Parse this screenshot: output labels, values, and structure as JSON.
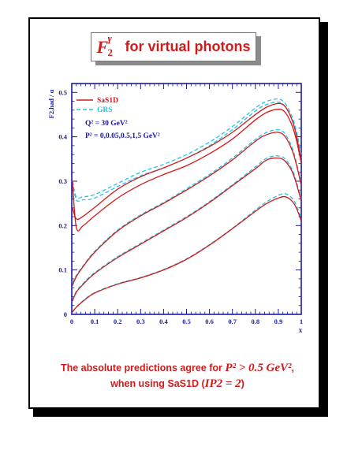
{
  "title": {
    "math": "F2γ",
    "text": "for virtual photons"
  },
  "caption": {
    "line1_prefix": "The absolute predictions agree for",
    "line1_math": "P² > 0.5 GeV²",
    "line1_suffix": ",",
    "line2_prefix": "when using SaS1D (",
    "line2_math": "IP2 = 2",
    "line2_suffix": ")"
  },
  "colors": {
    "frame": "#1a1aa6",
    "sas1d": "#d11a1a",
    "grs": "#22c4e8",
    "caption": "#d11a1a"
  },
  "chart_data": {
    "type": "line",
    "ylabel": "F2,had / α",
    "xlabel": "x",
    "xlim": [
      0,
      1
    ],
    "ylim": [
      0,
      0.52
    ],
    "xticks": [
      "0",
      "0.1",
      "0.2",
      "0.3",
      "0.4",
      "0.5",
      "0.6",
      "0.7",
      "0.8",
      "0.9",
      "1"
    ],
    "yticks": [
      "0",
      "0.1",
      "0.2",
      "0.3",
      "0.4",
      "0.5"
    ],
    "legend": [
      {
        "name": "SaS1D",
        "style": "solid"
      },
      {
        "name": "GRS",
        "style": "dashed"
      }
    ],
    "annotations": [
      "Q² = 30 GeV²",
      "P² = 0,0.05,0.5,1,5 GeV²"
    ],
    "x": [
      0.003,
      0.02,
      0.05,
      0.1,
      0.2,
      0.3,
      0.4,
      0.5,
      0.6,
      0.7,
      0.8,
      0.85,
      0.9,
      0.93,
      0.96,
      0.98,
      1.0
    ],
    "series": [
      {
        "name": "SaS1D",
        "P2": "0",
        "values": [
          0.3,
          0.195,
          0.2,
          0.222,
          0.262,
          0.292,
          0.315,
          0.335,
          0.362,
          0.395,
          0.438,
          0.455,
          0.462,
          0.455,
          0.425,
          0.39,
          0.34
        ]
      },
      {
        "name": "SaS1D",
        "P2": "0.05",
        "values": [
          0.24,
          0.215,
          0.221,
          0.241,
          0.282,
          0.31,
          0.33,
          0.352,
          0.378,
          0.41,
          0.45,
          0.467,
          0.475,
          0.468,
          0.438,
          0.4,
          0.345
        ]
      },
      {
        "name": "SaS1D",
        "P2": "0.5",
        "values": [
          0.065,
          0.085,
          0.108,
          0.14,
          0.188,
          0.222,
          0.25,
          0.28,
          0.312,
          0.348,
          0.39,
          0.405,
          0.41,
          0.4,
          0.37,
          0.335,
          0.29
        ]
      },
      {
        "name": "SaS1D",
        "P2": "1",
        "values": [
          0.03,
          0.05,
          0.068,
          0.092,
          0.128,
          0.158,
          0.188,
          0.218,
          0.252,
          0.29,
          0.328,
          0.348,
          0.352,
          0.345,
          0.322,
          0.292,
          0.255
        ]
      },
      {
        "name": "SaS1D",
        "P2": "5",
        "values": [
          0.005,
          0.016,
          0.03,
          0.048,
          0.068,
          0.082,
          0.1,
          0.124,
          0.156,
          0.193,
          0.232,
          0.25,
          0.262,
          0.265,
          0.255,
          0.238,
          0.21
        ]
      },
      {
        "name": "GRS",
        "P2": "0",
        "values": [
          0.3,
          0.264,
          0.265,
          0.27,
          0.295,
          0.32,
          0.338,
          0.36,
          0.388,
          0.423,
          0.465,
          0.48,
          0.485,
          0.475,
          0.445,
          0.41,
          0.36
        ]
      },
      {
        "name": "GRS",
        "P2": "0.05",
        "values": [
          0.3,
          0.258,
          0.258,
          0.262,
          0.288,
          0.312,
          0.33,
          0.352,
          0.38,
          0.416,
          0.458,
          0.473,
          0.478,
          0.468,
          0.438,
          0.403,
          0.352
        ]
      },
      {
        "name": "GRS",
        "P2": "0.5",
        "values": [
          0.07,
          0.088,
          0.11,
          0.142,
          0.19,
          0.224,
          0.252,
          0.283,
          0.315,
          0.352,
          0.394,
          0.41,
          0.416,
          0.406,
          0.376,
          0.34,
          0.295
        ]
      },
      {
        "name": "GRS",
        "P2": "1",
        "values": [
          0.032,
          0.052,
          0.07,
          0.094,
          0.13,
          0.16,
          0.19,
          0.22,
          0.254,
          0.292,
          0.332,
          0.352,
          0.357,
          0.35,
          0.327,
          0.297,
          0.26
        ]
      },
      {
        "name": "GRS",
        "P2": "5",
        "values": [
          0.006,
          0.017,
          0.031,
          0.049,
          0.069,
          0.083,
          0.101,
          0.125,
          0.157,
          0.194,
          0.235,
          0.254,
          0.268,
          0.272,
          0.262,
          0.244,
          0.215
        ]
      }
    ]
  }
}
